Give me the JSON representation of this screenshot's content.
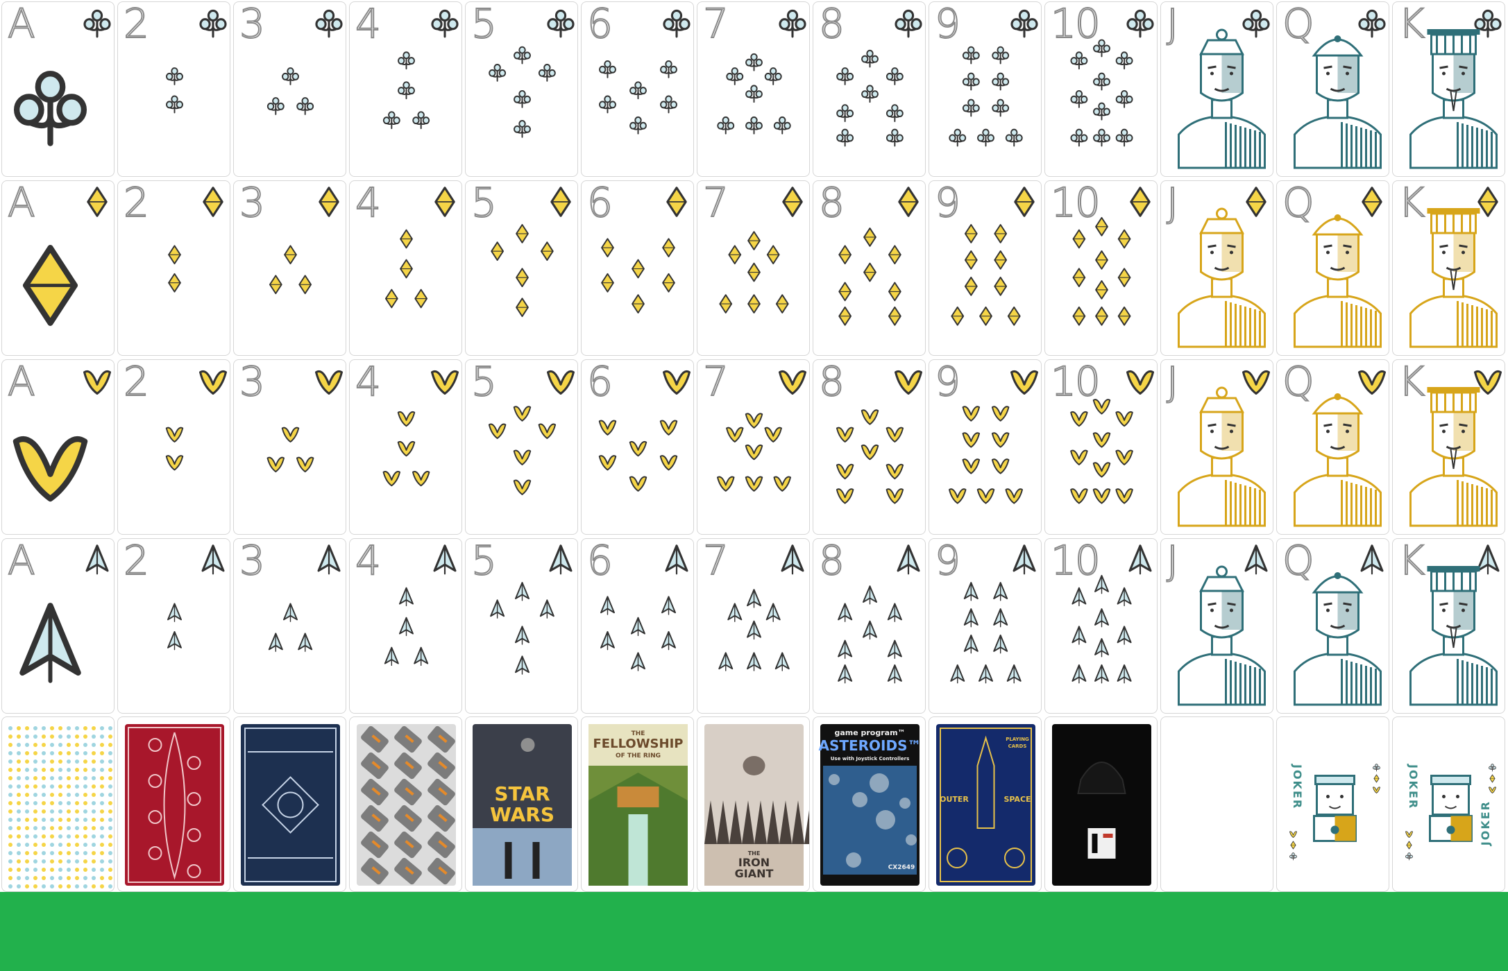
{
  "colors": {
    "background": "#22b14c",
    "club_fill": "#cfe9ee",
    "diamond_fill": "#f5d547",
    "heart_fill": "#f5d547",
    "spade_fill": "#cfe9ee",
    "teal": "#2f6f78",
    "gold": "#d7a51a",
    "ink": "#333333"
  },
  "ranks": [
    "A",
    "2",
    "3",
    "4",
    "5",
    "6",
    "7",
    "8",
    "9",
    "10",
    "J",
    "Q",
    "K"
  ],
  "suits": [
    {
      "name": "clubs",
      "icon": "club-icon"
    },
    {
      "name": "diamonds",
      "icon": "diamond-icon"
    },
    {
      "name": "hearts",
      "icon": "heart-icon"
    },
    {
      "name": "spades",
      "icon": "spade-icon"
    }
  ],
  "backs": [
    {
      "id": "suit-pattern",
      "icon": "suit-pattern"
    },
    {
      "id": "red-floral",
      "icon": "floral-pattern"
    },
    {
      "id": "navy-ornate",
      "icon": "ornate-pattern"
    },
    {
      "id": "gamepad-pattern",
      "icon": "controller-pattern"
    },
    {
      "id": "star-wars",
      "line1": "STAR",
      "line2": "WARS"
    },
    {
      "id": "fellowship",
      "line1": "THE",
      "line2": "FELLOWSHIP",
      "line3": "OF THE RING"
    },
    {
      "id": "iron-giant",
      "line1": "THE",
      "line2": "IRON",
      "line3": "GIANT"
    },
    {
      "id": "asteroids",
      "line1": "game program™",
      "line2": "ASTEROIDS™",
      "line3": "Use with Joystick Controllers",
      "line4": "CX2649"
    },
    {
      "id": "outer-space",
      "line1": "PLAYING",
      "line2": "CARDS",
      "line3": "OUTER",
      "line4": "SPACE"
    },
    {
      "id": "vader",
      "icon": "helmet-icon"
    },
    {
      "id": "blank"
    },
    {
      "id": "joker-1",
      "label": "JOKER"
    },
    {
      "id": "joker-2",
      "label": "JOKER"
    }
  ]
}
